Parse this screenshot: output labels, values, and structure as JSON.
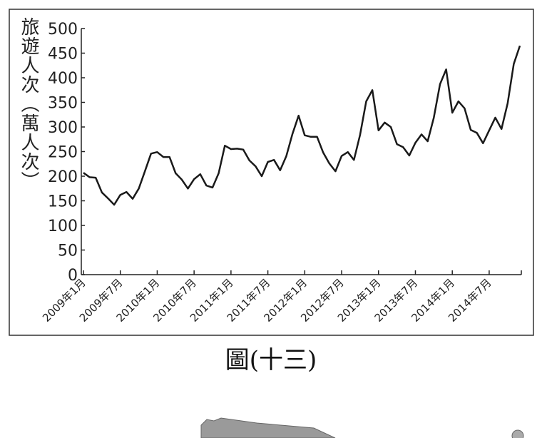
{
  "chart_data": {
    "type": "line",
    "y_label": "旅遊人次（萬人次）",
    "caption": "圖(十三)",
    "categories": [
      "2009年1月",
      null,
      null,
      null,
      null,
      null,
      "2009年7月",
      null,
      null,
      null,
      null,
      null,
      "2010年1月",
      null,
      null,
      null,
      null,
      null,
      "2010年7月",
      null,
      null,
      null,
      null,
      null,
      "2011年1月",
      null,
      null,
      null,
      null,
      null,
      "2011年7月",
      null,
      null,
      null,
      null,
      null,
      "2012年1月",
      null,
      null,
      null,
      null,
      null,
      "2012年7月",
      null,
      null,
      null,
      null,
      null,
      "2013年1月",
      null,
      null,
      null,
      null,
      null,
      "2013年7月",
      null,
      null,
      null,
      null,
      null,
      "2014年1月",
      null,
      null,
      null,
      null,
      null,
      "2014年7月",
      null,
      null,
      null,
      null,
      null
    ],
    "values": [
      207,
      198,
      197,
      167,
      155,
      142,
      162,
      168,
      154,
      175,
      210,
      246,
      249,
      239,
      239,
      206,
      193,
      175,
      194,
      204,
      181,
      177,
      206,
      262,
      255,
      256,
      254,
      232,
      220,
      200,
      229,
      233,
      212,
      241,
      286,
      323,
      283,
      280,
      280,
      248,
      226,
      210,
      241,
      249,
      233,
      284,
      352,
      375,
      293,
      309,
      300,
      265,
      259,
      242,
      268,
      285,
      271,
      319,
      387,
      417,
      329,
      352,
      338,
      294,
      288,
      267,
      293,
      319,
      296,
      348,
      428,
      465
    ],
    "color": "#1a1a1a",
    "ylim": [
      0,
      500
    ],
    "yticks": [
      0,
      50,
      100,
      150,
      200,
      250,
      300,
      350,
      400,
      450,
      500
    ]
  }
}
